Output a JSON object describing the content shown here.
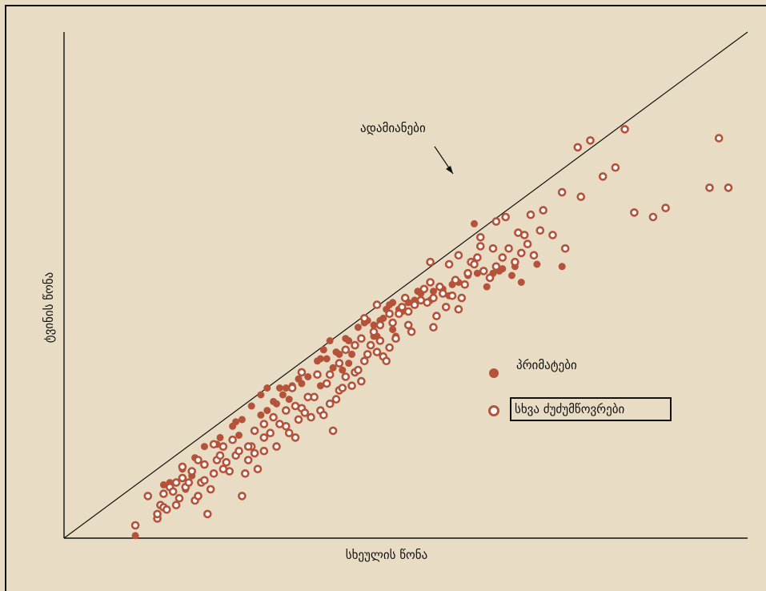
{
  "chart_data": {
    "type": "scatter",
    "title": "",
    "xlabel": "სხეულის წონა",
    "ylabel": "ტვინის წონა",
    "xlim": [
      0,
      100
    ],
    "ylim": [
      0,
      100
    ],
    "grid": false,
    "legend_placement": "right",
    "trend_line": {
      "from": [
        0,
        0
      ],
      "to": [
        100,
        100
      ]
    },
    "annotation": {
      "text": "ადამიანები",
      "target": [
        59.5,
        69.5
      ]
    },
    "colors": {
      "marker": "#b5533a",
      "background": "#e8dcc5",
      "axis": "#111111"
    },
    "series": [
      {
        "name": "პრიმატები",
        "marker": "filled",
        "points": [
          [
            5.5,
            0.2
          ],
          [
            18.5,
            20.5
          ],
          [
            21.5,
            25.5
          ],
          [
            22.5,
            26.0
          ],
          [
            25.5,
            27.0
          ],
          [
            26.5,
            28.0
          ],
          [
            27.5,
            30.0
          ],
          [
            29.0,
            31.5
          ],
          [
            30.5,
            33.5
          ],
          [
            29.5,
            33.0
          ],
          [
            31.5,
            35.0
          ],
          [
            33.0,
            35.5
          ],
          [
            34.5,
            39.0
          ],
          [
            35.0,
            39.5
          ],
          [
            36.0,
            39.5
          ],
          [
            35.5,
            41.5
          ],
          [
            36.5,
            43.5
          ],
          [
            37.5,
            41.0
          ],
          [
            38.0,
            40.5
          ],
          [
            39.0,
            44.0
          ],
          [
            39.5,
            43.5
          ],
          [
            41.0,
            46.5
          ],
          [
            42.0,
            47.5
          ],
          [
            43.5,
            47.0
          ],
          [
            44.5,
            48.0
          ],
          [
            45.0,
            48.5
          ],
          [
            46.0,
            51.5
          ],
          [
            46.5,
            52.0
          ],
          [
            47.5,
            50.5
          ],
          [
            48.0,
            50.0
          ],
          [
            49.0,
            52.0
          ],
          [
            50.0,
            52.5
          ],
          [
            50.5,
            54.5
          ],
          [
            52.5,
            52.5
          ],
          [
            53.0,
            54.5
          ],
          [
            54.5,
            55.0
          ],
          [
            55.5,
            53.5
          ],
          [
            56.0,
            56.0
          ],
          [
            57.0,
            56.5
          ],
          [
            58.5,
            58.0
          ],
          [
            60.0,
            58.5
          ],
          [
            61.5,
            55.5
          ],
          [
            62.5,
            58.5
          ],
          [
            63.5,
            59.0
          ],
          [
            64.0,
            59.5
          ],
          [
            65.5,
            58.0
          ],
          [
            66.0,
            60.0
          ],
          [
            67.0,
            56.5
          ],
          [
            69.5,
            60.5
          ],
          [
            73.5,
            60.0
          ],
          [
            59.5,
            69.5
          ],
          [
            44.0,
            44.5
          ],
          [
            40.0,
            40.5
          ],
          [
            39.5,
            38.5
          ],
          [
            38.5,
            37.0
          ],
          [
            37.0,
            37.5
          ],
          [
            32.0,
            34.0
          ],
          [
            28.0,
            29.5
          ],
          [
            26.5,
            33.0
          ],
          [
            42.5,
            48.0
          ],
          [
            43.5,
            44.5
          ],
          [
            46.5,
            46.0
          ],
          [
            47.0,
            44.5
          ],
          [
            35.0,
            33.5
          ],
          [
            30.0,
            30.5
          ],
          [
            25.5,
            31.5
          ],
          [
            21.0,
            24.5
          ],
          [
            19.0,
            22.0
          ],
          [
            16.5,
            20.0
          ],
          [
            15.0,
            17.5
          ],
          [
            13.0,
            15.0
          ],
          [
            11.0,
            12.0
          ],
          [
            10.0,
            11.5
          ],
          [
            13.5,
            10.5
          ],
          [
            14.5,
            13.5
          ],
          [
            24.0,
            29.0
          ],
          [
            22.0,
            22.5
          ],
          [
            28.5,
            33.0
          ],
          [
            45.5,
            50.5
          ],
          [
            51.0,
            54.0
          ]
        ]
      },
      {
        "name": "სხვა ძუძუმწოვრები",
        "marker": "hollow",
        "points": [
          [
            5.5,
            2.5
          ],
          [
            7.5,
            9.0
          ],
          [
            9.0,
            4.0
          ],
          [
            9.0,
            5.0
          ],
          [
            9.5,
            7.0
          ],
          [
            10.0,
            6.5
          ],
          [
            10.5,
            6.0
          ],
          [
            11.0,
            11.0
          ],
          [
            11.5,
            10.0
          ],
          [
            12.0,
            7.0
          ],
          [
            12.5,
            8.5
          ],
          [
            13.0,
            13.0
          ],
          [
            13.5,
            11.0
          ],
          [
            14.0,
            12.0
          ],
          [
            14.5,
            14.5
          ],
          [
            15.0,
            8.0
          ],
          [
            15.5,
            9.0
          ],
          [
            16.0,
            12.0
          ],
          [
            16.5,
            12.5
          ],
          [
            16.5,
            16.0
          ],
          [
            17.0,
            5.0
          ],
          [
            17.5,
            10.5
          ],
          [
            18.0,
            14.0
          ],
          [
            18.5,
            17.0
          ],
          [
            19.0,
            18.0
          ],
          [
            19.5,
            15.0
          ],
          [
            20.0,
            16.5
          ],
          [
            20.5,
            14.5
          ],
          [
            21.5,
            18.0
          ],
          [
            22.0,
            19.0
          ],
          [
            22.5,
            9.0
          ],
          [
            23.0,
            14.0
          ],
          [
            23.5,
            17.0
          ],
          [
            24.0,
            20.0
          ],
          [
            24.5,
            18.5
          ],
          [
            25.0,
            15.0
          ],
          [
            26.0,
            25.0
          ],
          [
            27.0,
            23.0
          ],
          [
            28.0,
            20.0
          ],
          [
            28.5,
            25.0
          ],
          [
            29.5,
            24.5
          ],
          [
            30.0,
            23.0
          ],
          [
            31.0,
            22.0
          ],
          [
            31.5,
            26.0
          ],
          [
            32.0,
            28.5
          ],
          [
            32.5,
            27.5
          ],
          [
            33.5,
            26.5
          ],
          [
            34.0,
            31.0
          ],
          [
            35.0,
            28.0
          ],
          [
            35.5,
            27.0
          ],
          [
            36.5,
            29.5
          ],
          [
            37.0,
            23.5
          ],
          [
            37.5,
            30.5
          ],
          [
            38.0,
            32.5
          ],
          [
            38.5,
            33.0
          ],
          [
            39.0,
            35.5
          ],
          [
            40.0,
            33.5
          ],
          [
            40.5,
            36.5
          ],
          [
            41.0,
            37.0
          ],
          [
            41.5,
            34.5
          ],
          [
            42.0,
            39.0
          ],
          [
            42.5,
            40.5
          ],
          [
            43.0,
            42.5
          ],
          [
            43.5,
            45.5
          ],
          [
            44.0,
            41.0
          ],
          [
            44.5,
            43.5
          ],
          [
            45.0,
            40.0
          ],
          [
            45.5,
            39.0
          ],
          [
            46.0,
            42.0
          ],
          [
            46.5,
            47.5
          ],
          [
            47.0,
            44.0
          ],
          [
            47.5,
            49.5
          ],
          [
            48.0,
            51.0
          ],
          [
            48.5,
            53.0
          ],
          [
            49.0,
            50.0
          ],
          [
            49.5,
            45.5
          ],
          [
            50.0,
            51.5
          ],
          [
            51.0,
            52.5
          ],
          [
            51.5,
            55.0
          ],
          [
            52.0,
            52.0
          ],
          [
            52.5,
            56.5
          ],
          [
            53.0,
            46.5
          ],
          [
            53.5,
            49.0
          ],
          [
            54.5,
            54.0
          ],
          [
            55.0,
            51.0
          ],
          [
            56.0,
            53.5
          ],
          [
            57.0,
            50.5
          ],
          [
            57.5,
            53.0
          ],
          [
            58.0,
            56.0
          ],
          [
            58.5,
            58.5
          ],
          [
            59.0,
            61.0
          ],
          [
            59.5,
            60.5
          ],
          [
            60.0,
            62.0
          ],
          [
            61.0,
            59.0
          ],
          [
            62.0,
            57.5
          ],
          [
            63.0,
            60.0
          ],
          [
            64.0,
            62.0
          ],
          [
            65.0,
            64.0
          ],
          [
            66.0,
            61.0
          ],
          [
            67.0,
            63.0
          ],
          [
            68.0,
            65.0
          ],
          [
            69.0,
            62.5
          ],
          [
            70.0,
            68.0
          ],
          [
            72.0,
            67.0
          ],
          [
            74.0,
            64.0
          ],
          [
            76.5,
            75.5
          ],
          [
            80.0,
            80.0
          ],
          [
            82.0,
            82.0
          ],
          [
            85.0,
            72.0
          ],
          [
            88.0,
            71.0
          ],
          [
            90.0,
            73.0
          ],
          [
            97.0,
            77.5
          ],
          [
            98.5,
            88.5
          ],
          [
            100.0,
            77.5
          ],
          [
            53.0,
            53.0
          ],
          [
            54.0,
            55.5
          ],
          [
            56.5,
            57.0
          ],
          [
            44.5,
            47.0
          ],
          [
            41.5,
            44.0
          ],
          [
            40.5,
            42.5
          ],
          [
            39.0,
            41.5
          ],
          [
            38.0,
            38.5
          ],
          [
            36.0,
            34.0
          ],
          [
            34.5,
            36.0
          ],
          [
            33.0,
            31.0
          ],
          [
            29.5,
            28.0
          ],
          [
            27.5,
            26.5
          ],
          [
            26.0,
            22.0
          ],
          [
            24.5,
            23.5
          ],
          [
            21.0,
            21.5
          ],
          [
            19.5,
            20.0
          ],
          [
            18.0,
            20.5
          ],
          [
            15.5,
            17.0
          ],
          [
            13.0,
            15.5
          ],
          [
            12.0,
            12.0
          ],
          [
            10.0,
            9.5
          ],
          [
            60.5,
            64.5
          ],
          [
            62.5,
            64.0
          ],
          [
            66.5,
            67.5
          ],
          [
            68.5,
            71.5
          ],
          [
            70.5,
            72.5
          ],
          [
            73.5,
            76.5
          ],
          [
            76.0,
            86.5
          ],
          [
            78.0,
            88.0
          ],
          [
            83.5,
            90.5
          ],
          [
            52.5,
            61.0
          ],
          [
            55.5,
            60.5
          ],
          [
            57.0,
            62.5
          ],
          [
            60.5,
            66.5
          ],
          [
            63.0,
            70.0
          ],
          [
            64.5,
            71.0
          ],
          [
            67.5,
            67.0
          ],
          [
            49.0,
            47.0
          ],
          [
            46.0,
            49.5
          ],
          [
            44.0,
            51.5
          ],
          [
            42.0,
            48.5
          ],
          [
            30.5,
            33.0
          ],
          [
            31.0,
            29.0
          ],
          [
            36.5,
            36.0
          ],
          [
            32.0,
            36.5
          ],
          [
            26.0,
            19.0
          ],
          [
            23.5,
            20.0
          ]
        ]
      }
    ],
    "legend": [
      {
        "label": "პრიმატები",
        "marker": "filled"
      },
      {
        "label": "სხვა ძუძუმწოვრები",
        "marker": "hollow",
        "boxed": true
      }
    ]
  }
}
